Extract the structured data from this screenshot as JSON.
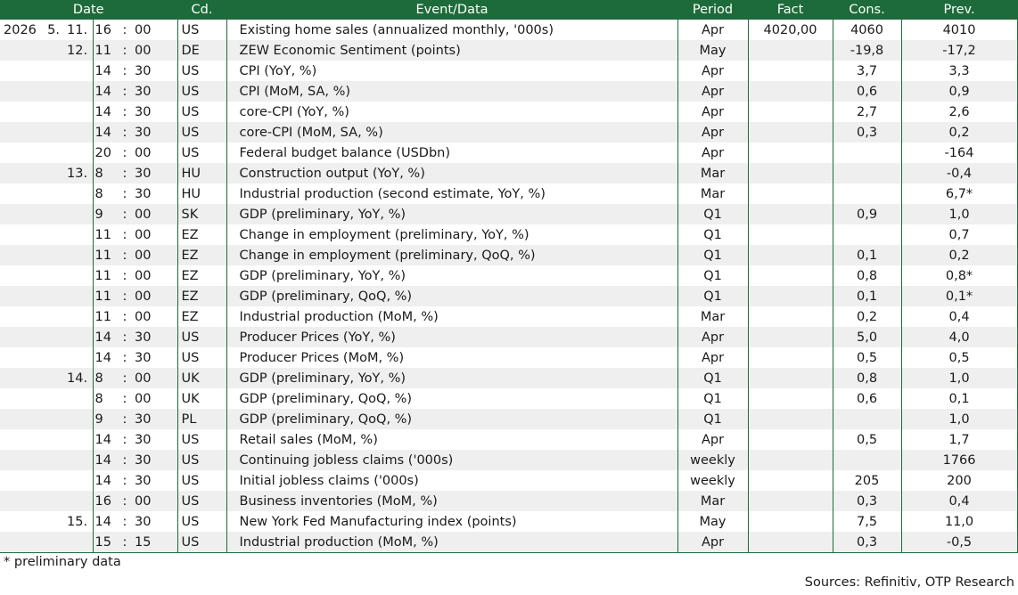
{
  "headers": {
    "date": "Date",
    "code": "Cd.",
    "event": "Event/Data",
    "period": "Period",
    "fact": "Fact",
    "cons": "Cons.",
    "prev": "Prev."
  },
  "rows": [
    {
      "year": "2026",
      "month": "5.",
      "day": "11.",
      "hour": "16",
      "min": "00",
      "code": "US",
      "event": "Existing home sales (annualized monthly, '000s)",
      "period": "Apr",
      "fact": "4020,00",
      "cons": "4060",
      "prev": "4010"
    },
    {
      "year": "",
      "month": "",
      "day": "12.",
      "hour": "11",
      "min": "00",
      "code": "DE",
      "event": "ZEW Economic Sentiment (points)",
      "period": "May",
      "fact": "",
      "cons": "-19,8",
      "prev": "-17,2"
    },
    {
      "year": "",
      "month": "",
      "day": "",
      "hour": "14",
      "min": "30",
      "code": "US",
      "event": "CPI (YoY, %)",
      "period": "Apr",
      "fact": "",
      "cons": "3,7",
      "prev": "3,3"
    },
    {
      "year": "",
      "month": "",
      "day": "",
      "hour": "14",
      "min": "30",
      "code": "US",
      "event": "CPI (MoM, SA, %)",
      "period": "Apr",
      "fact": "",
      "cons": "0,6",
      "prev": "0,9"
    },
    {
      "year": "",
      "month": "",
      "day": "",
      "hour": "14",
      "min": "30",
      "code": "US",
      "event": "core-CPI (YoY, %)",
      "period": "Apr",
      "fact": "",
      "cons": "2,7",
      "prev": "2,6"
    },
    {
      "year": "",
      "month": "",
      "day": "",
      "hour": "14",
      "min": "30",
      "code": "US",
      "event": "core-CPI (MoM, SA, %)",
      "period": "Apr",
      "fact": "",
      "cons": "0,3",
      "prev": "0,2"
    },
    {
      "year": "",
      "month": "",
      "day": "",
      "hour": "20",
      "min": "00",
      "code": "US",
      "event": "Federal budget balance (USDbn)",
      "period": "Apr",
      "fact": "",
      "cons": "",
      "prev": "-164"
    },
    {
      "year": "",
      "month": "",
      "day": "13.",
      "hour": "8",
      "min": "30",
      "code": "HU",
      "event": "Construction output (YoY, %)",
      "period": "Mar",
      "fact": "",
      "cons": "",
      "prev": "-0,4"
    },
    {
      "year": "",
      "month": "",
      "day": "",
      "hour": "8",
      "min": "30",
      "code": "HU",
      "event": "Industrial production (second estimate, YoY, %)",
      "period": "Mar",
      "fact": "",
      "cons": "",
      "prev": "6,7*"
    },
    {
      "year": "",
      "month": "",
      "day": "",
      "hour": "9",
      "min": "00",
      "code": "SK",
      "event": "GDP (preliminary, YoY, %)",
      "period": "Q1",
      "fact": "",
      "cons": "0,9",
      "prev": "1,0"
    },
    {
      "year": "",
      "month": "",
      "day": "",
      "hour": "11",
      "min": "00",
      "code": "EZ",
      "event": "Change in employment (preliminary, YoY, %)",
      "period": "Q1",
      "fact": "",
      "cons": "",
      "prev": "0,7"
    },
    {
      "year": "",
      "month": "",
      "day": "",
      "hour": "11",
      "min": "00",
      "code": "EZ",
      "event": "Change in employment (preliminary, QoQ, %)",
      "period": "Q1",
      "fact": "",
      "cons": "0,1",
      "prev": "0,2"
    },
    {
      "year": "",
      "month": "",
      "day": "",
      "hour": "11",
      "min": "00",
      "code": "EZ",
      "event": "GDP (preliminary, YoY, %)",
      "period": "Q1",
      "fact": "",
      "cons": "0,8",
      "prev": "0,8*"
    },
    {
      "year": "",
      "month": "",
      "day": "",
      "hour": "11",
      "min": "00",
      "code": "EZ",
      "event": "GDP (preliminary, QoQ, %)",
      "period": "Q1",
      "fact": "",
      "cons": "0,1",
      "prev": "0,1*"
    },
    {
      "year": "",
      "month": "",
      "day": "",
      "hour": "11",
      "min": "00",
      "code": "EZ",
      "event": "Industrial production (MoM, %)",
      "period": "Mar",
      "fact": "",
      "cons": "0,2",
      "prev": "0,4"
    },
    {
      "year": "",
      "month": "",
      "day": "",
      "hour": "14",
      "min": "30",
      "code": "US",
      "event": "Producer Prices (YoY, %)",
      "period": "Apr",
      "fact": "",
      "cons": "5,0",
      "prev": "4,0"
    },
    {
      "year": "",
      "month": "",
      "day": "",
      "hour": "14",
      "min": "30",
      "code": "US",
      "event": "Producer Prices (MoM, %)",
      "period": "Apr",
      "fact": "",
      "cons": "0,5",
      "prev": "0,5"
    },
    {
      "year": "",
      "month": "",
      "day": "14.",
      "hour": "8",
      "min": "00",
      "code": "UK",
      "event": "GDP (preliminary, YoY, %)",
      "period": "Q1",
      "fact": "",
      "cons": "0,8",
      "prev": "1,0"
    },
    {
      "year": "",
      "month": "",
      "day": "",
      "hour": "8",
      "min": "00",
      "code": "UK",
      "event": "GDP (preliminary, QoQ, %)",
      "period": "Q1",
      "fact": "",
      "cons": "0,6",
      "prev": "0,1"
    },
    {
      "year": "",
      "month": "",
      "day": "",
      "hour": "9",
      "min": "30",
      "code": "PL",
      "event": "GDP (preliminary, QoQ, %)",
      "period": "Q1",
      "fact": "",
      "cons": "",
      "prev": "1,0"
    },
    {
      "year": "",
      "month": "",
      "day": "",
      "hour": "14",
      "min": "30",
      "code": "US",
      "event": "Retail sales (MoM, %)",
      "period": "Apr",
      "fact": "",
      "cons": "0,5",
      "prev": "1,7"
    },
    {
      "year": "",
      "month": "",
      "day": "",
      "hour": "14",
      "min": "30",
      "code": "US",
      "event": "Continuing jobless claims ('000s)",
      "period": "weekly",
      "fact": "",
      "cons": "",
      "prev": "1766"
    },
    {
      "year": "",
      "month": "",
      "day": "",
      "hour": "14",
      "min": "30",
      "code": "US",
      "event": "Initial jobless claims ('000s)",
      "period": "weekly",
      "fact": "",
      "cons": "205",
      "prev": "200"
    },
    {
      "year": "",
      "month": "",
      "day": "",
      "hour": "16",
      "min": "00",
      "code": "US",
      "event": "Business inventories (MoM, %)",
      "period": "Mar",
      "fact": "",
      "cons": "0,3",
      "prev": "0,4"
    },
    {
      "year": "",
      "month": "",
      "day": "15.",
      "hour": "14",
      "min": "30",
      "code": "US",
      "event": "New York Fed Manufacturing index (points)",
      "period": "May",
      "fact": "",
      "cons": "7,5",
      "prev": "11,0"
    },
    {
      "year": "",
      "month": "",
      "day": "",
      "hour": "15",
      "min": "15",
      "code": "US",
      "event": "Industrial production (MoM, %)",
      "period": "Apr",
      "fact": "",
      "cons": "0,3",
      "prev": "-0,5"
    }
  ],
  "time_separator": ":",
  "footnote": "* preliminary data",
  "sources": "Sources: Refinitiv, OTP Research",
  "colors": {
    "header_bg": "#1d6b3a",
    "header_text": "#ffffff",
    "stripe": "#efefef",
    "rule": "#1d6b3a"
  }
}
